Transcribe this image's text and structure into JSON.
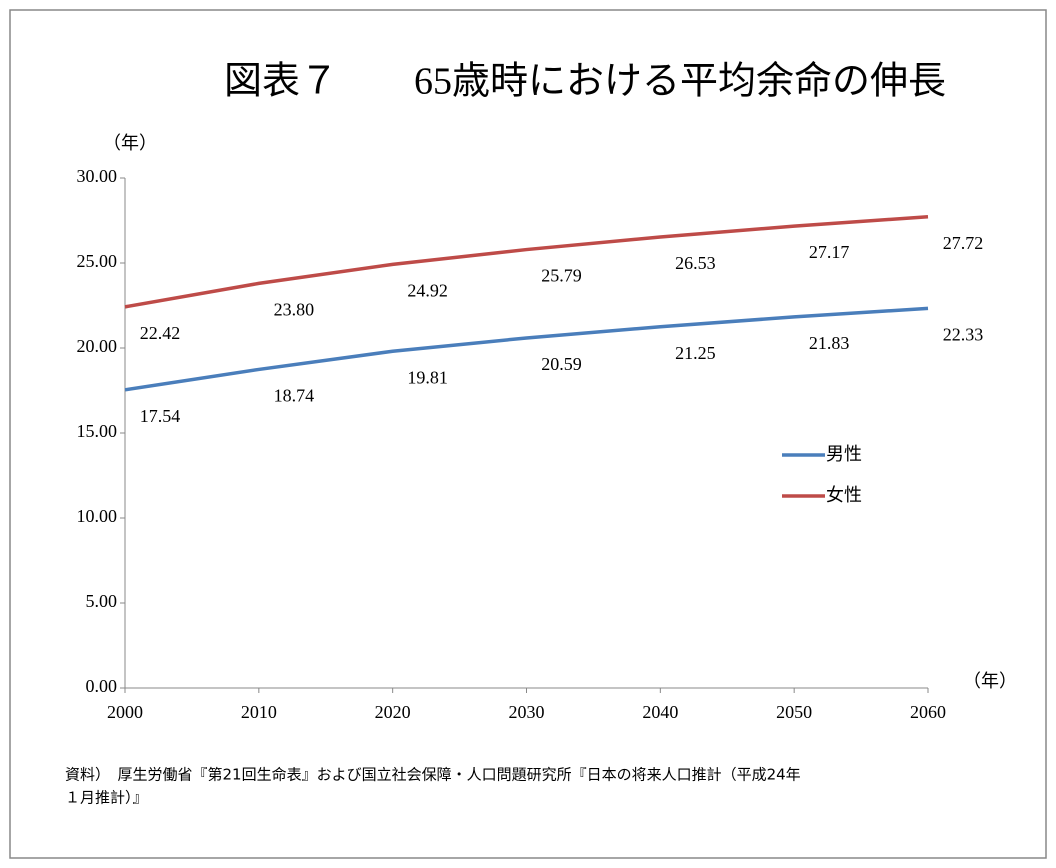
{
  "chart_data": {
    "type": "line",
    "title": "図表７　　65歳時における平均余命の伸長",
    "y_unit": "（年）",
    "x_unit": "（年）",
    "x": [
      2000,
      2010,
      2020,
      2030,
      2040,
      2050,
      2060
    ],
    "series": [
      {
        "name": "男性",
        "color": "#4a7ebb",
        "values": [
          17.54,
          18.74,
          19.81,
          20.59,
          21.25,
          21.83,
          22.33
        ],
        "value_labels": [
          "17.54",
          "18.74",
          "19.81",
          "20.59",
          "21.25",
          "21.83",
          "22.33"
        ]
      },
      {
        "name": "女性",
        "color": "#be4b48",
        "values": [
          22.42,
          23.8,
          24.92,
          25.79,
          26.53,
          27.17,
          27.72
        ],
        "value_labels": [
          "22.42",
          "23.80",
          "24.92",
          "25.79",
          "26.53",
          "27.17",
          "27.72"
        ]
      }
    ],
    "xlim": [
      2000,
      2060
    ],
    "xticks": [
      2000,
      2010,
      2020,
      2030,
      2040,
      2050,
      2060
    ],
    "ylim": [
      0,
      30
    ],
    "yticks": [
      {
        "value": 0,
        "label": "0.00"
      },
      {
        "value": 5,
        "label": "5.00"
      },
      {
        "value": 10,
        "label": "10.00"
      },
      {
        "value": 15,
        "label": "15.00"
      },
      {
        "value": 20,
        "label": "20.00"
      },
      {
        "value": 25,
        "label": "25.00"
      },
      {
        "value": 30,
        "label": "30.00"
      }
    ],
    "grid": false,
    "legend": "right",
    "source": [
      "資料）　厚生労働省『第21回生命表』および国立社会保障・人口問題研究所『日本の将来人口推計（平成24年",
      "１月推計）』"
    ]
  }
}
